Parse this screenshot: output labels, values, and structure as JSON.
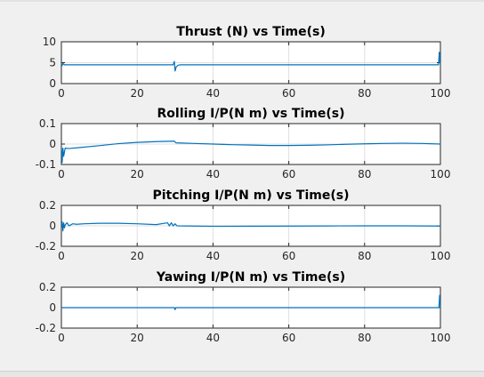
{
  "chart_data": [
    {
      "type": "line",
      "title": "Thrust (N) vs Time(s)",
      "xlim": [
        0,
        100
      ],
      "ylim": [
        0,
        10
      ],
      "xticks": [
        0,
        20,
        40,
        60,
        80,
        100
      ],
      "yticks": [
        0,
        5,
        10
      ],
      "xtick_labels": [
        "0",
        "20",
        "40",
        "60",
        "80",
        "100"
      ],
      "ytick_labels": [
        "0",
        "5",
        "10"
      ],
      "grid": true,
      "color": "#0072bd",
      "series": [
        {
          "x": [
            0,
            0.2,
            0.4,
            0.8,
            1,
            5,
            10,
            20,
            29.5,
            29.8,
            30,
            30.3,
            30.8,
            31.5,
            33,
            40,
            50,
            60,
            70,
            80,
            90,
            99.5,
            99.7,
            99.85,
            100
          ],
          "y": [
            4.6,
            4.3,
            4.8,
            4.5,
            4.5,
            4.5,
            4.5,
            4.5,
            4.5,
            5.3,
            3.0,
            4.0,
            4.4,
            4.5,
            4.5,
            4.5,
            4.5,
            4.5,
            4.5,
            4.5,
            4.5,
            4.5,
            7.5,
            5.0,
            7.0
          ]
        }
      ]
    },
    {
      "type": "line",
      "title": "Rolling I/P(N m) vs Time(s)",
      "xlim": [
        0,
        100
      ],
      "ylim": [
        -0.1,
        0.1
      ],
      "xticks": [
        0,
        20,
        40,
        60,
        80,
        100
      ],
      "yticks": [
        -0.1,
        0,
        0.1
      ],
      "xtick_labels": [
        "0",
        "20",
        "40",
        "60",
        "80",
        "100"
      ],
      "ytick_labels": [
        "-0.1",
        "0",
        "0.1"
      ],
      "grid": true,
      "color": "#0072bd",
      "series": [
        {
          "x": [
            0,
            0.2,
            0.4,
            0.6,
            1,
            2,
            5,
            10,
            15,
            20,
            25,
            29.8,
            30.2,
            35,
            40,
            45,
            50,
            55,
            60,
            65,
            70,
            75,
            80,
            85,
            90,
            95,
            100
          ],
          "y": [
            -0.01,
            -0.09,
            -0.02,
            -0.06,
            -0.02,
            -0.022,
            -0.017,
            -0.008,
            0.002,
            0.008,
            0.012,
            0.014,
            0.006,
            0.003,
            0.0,
            -0.003,
            -0.005,
            -0.007,
            -0.007,
            -0.006,
            -0.004,
            -0.001,
            0.001,
            0.003,
            0.004,
            0.003,
            0.0
          ]
        }
      ]
    },
    {
      "type": "line",
      "title": "Pitching I/P(N m) vs Time(s)",
      "xlim": [
        0,
        100
      ],
      "ylim": [
        -0.2,
        0.2
      ],
      "xticks": [
        0,
        20,
        40,
        60,
        80,
        100
      ],
      "yticks": [
        -0.2,
        0,
        0.2
      ],
      "xtick_labels": [
        "0",
        "20",
        "40",
        "60",
        "80",
        "100"
      ],
      "ytick_labels": [
        "-0.2",
        "0",
        "0.2"
      ],
      "grid": true,
      "color": "#0072bd",
      "series": [
        {
          "x": [
            0,
            0.2,
            0.4,
            0.6,
            0.8,
            1,
            1.5,
            2,
            3,
            4,
            6,
            10,
            15,
            20,
            25,
            28,
            28.5,
            29,
            29.5,
            30,
            30.5,
            35,
            40,
            50,
            60,
            70,
            80,
            90,
            100
          ],
          "y": [
            0.0,
            0.04,
            -0.05,
            0.03,
            -0.02,
            0.01,
            0.03,
            0.0,
            0.02,
            0.015,
            0.02,
            0.025,
            0.025,
            0.02,
            0.012,
            0.03,
            0.0,
            0.03,
            0.0,
            0.02,
            0.0,
            -0.002,
            -0.004,
            -0.003,
            -0.002,
            -0.001,
            0.0,
            0.0,
            -0.002
          ]
        }
      ]
    },
    {
      "type": "line",
      "title": "Yawing I/P(N m) vs Time(s)",
      "xlim": [
        0,
        100
      ],
      "ylim": [
        -0.2,
        0.2
      ],
      "xticks": [
        0,
        20,
        40,
        60,
        80,
        100
      ],
      "yticks": [
        -0.2,
        0,
        0.2
      ],
      "xtick_labels": [
        "0",
        "20",
        "40",
        "60",
        "80",
        "100"
      ],
      "ytick_labels": [
        "-0.2",
        "0",
        "0.2"
      ],
      "grid": true,
      "color": "#0072bd",
      "series": [
        {
          "x": [
            0,
            10,
            20,
            29.8,
            30,
            30.2,
            30.5,
            40,
            50,
            60,
            70,
            80,
            90,
            99.6,
            99.8,
            100
          ],
          "y": [
            0,
            0,
            0,
            0,
            -0.02,
            0,
            0,
            0,
            0,
            0,
            0,
            0,
            0,
            0,
            0.12,
            -0.01
          ]
        }
      ]
    }
  ]
}
